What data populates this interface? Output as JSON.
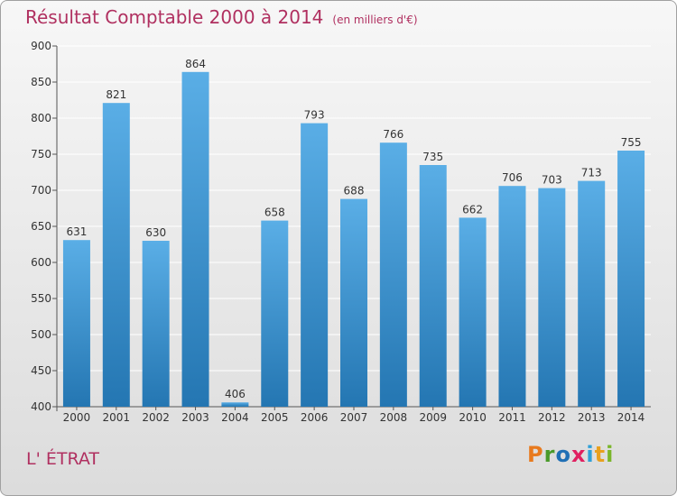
{
  "header": {
    "title": "Résultat Comptable 2000 à 2014",
    "subtitle": "(en milliers d'€)"
  },
  "footer": {
    "commune": "L' ÉTRAT",
    "logo": "Proxiti",
    "logo_letters": [
      "P",
      "r",
      "o",
      "x",
      "i",
      "t",
      "i"
    ]
  },
  "colors": {
    "bar_top": "#5aaee6",
    "bar_bottom": "#2476b2",
    "title": "#b03060",
    "grid": "#ffffff",
    "axis": "#555555"
  },
  "chart_data": {
    "type": "bar",
    "categories": [
      "2000",
      "2001",
      "2002",
      "2003",
      "2004",
      "2005",
      "2006",
      "2007",
      "2008",
      "2009",
      "2010",
      "2011",
      "2012",
      "2013",
      "2014"
    ],
    "values": [
      631,
      821,
      630,
      864,
      406,
      658,
      793,
      688,
      766,
      735,
      662,
      706,
      703,
      713,
      755
    ],
    "ylim": [
      400,
      900
    ],
    "yticks": [
      400,
      450,
      500,
      550,
      600,
      650,
      700,
      750,
      800,
      850,
      900
    ],
    "grid": true,
    "xlabel": "",
    "ylabel": ""
  }
}
